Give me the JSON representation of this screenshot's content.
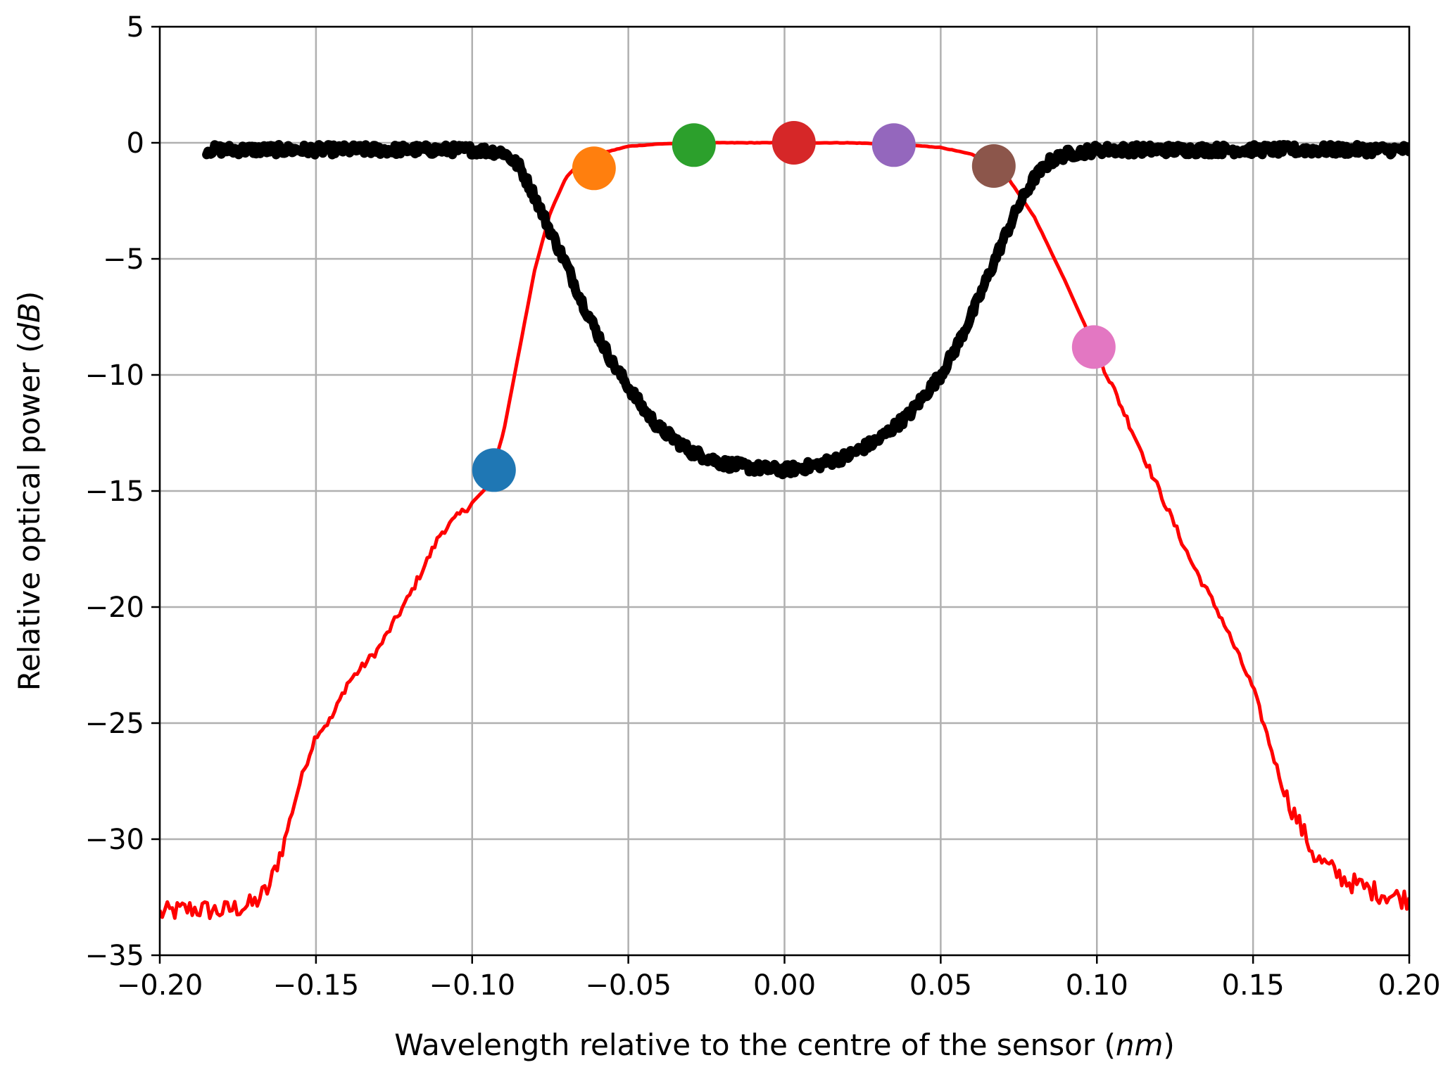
{
  "chart_data": {
    "type": "line",
    "xlabel": "Wavelength relative to the centre of the sensor",
    "xlabel_unit": "nm",
    "ylabel": "Relative optical power",
    "ylabel_unit": "dB",
    "xlim": [
      -0.2,
      0.2
    ],
    "ylim": [
      -35,
      5
    ],
    "grid": true,
    "xticks": [
      -0.2,
      -0.15,
      -0.1,
      -0.05,
      0.0,
      0.05,
      0.1,
      0.15,
      0.2
    ],
    "xtick_labels": [
      "−0.20",
      "−0.15",
      "−0.10",
      "−0.05",
      "0.00",
      "0.05",
      "0.10",
      "0.15",
      "0.20"
    ],
    "yticks": [
      5,
      0,
      -5,
      -10,
      -15,
      -20,
      -25,
      -30,
      -35
    ],
    "ytick_labels": [
      "5",
      "0",
      "−5",
      "−10",
      "−15",
      "−20",
      "−25",
      "−30",
      "−35"
    ],
    "series": [
      {
        "kind": "line",
        "color": "#ff0000",
        "x": [
          -0.2,
          -0.19,
          -0.18,
          -0.17,
          -0.165,
          -0.16,
          -0.155,
          -0.15,
          -0.145,
          -0.14,
          -0.13,
          -0.12,
          -0.11,
          -0.1,
          -0.095,
          -0.09,
          -0.085,
          -0.08,
          -0.075,
          -0.07,
          -0.065,
          -0.06,
          -0.05,
          -0.04,
          -0.03,
          -0.02,
          0.0,
          0.02,
          0.035,
          0.05,
          0.06,
          0.07,
          0.08,
          0.09,
          0.1,
          0.11,
          0.12,
          0.13,
          0.14,
          0.15,
          0.16,
          0.17,
          0.18,
          0.19,
          0.2
        ],
        "y": [
          -33.2,
          -33.0,
          -33.1,
          -32.8,
          -32.1,
          -30.0,
          -27.5,
          -25.5,
          -24.8,
          -23.3,
          -21.8,
          -19.5,
          -16.8,
          -15.5,
          -14.8,
          -12.5,
          -9.0,
          -5.5,
          -3.0,
          -1.5,
          -0.8,
          -0.5,
          -0.15,
          -0.05,
          0.0,
          0.0,
          0.0,
          0.0,
          -0.05,
          -0.2,
          -0.5,
          -1.2,
          -3.2,
          -6.0,
          -9.0,
          -12.0,
          -15.0,
          -18.0,
          -20.5,
          -23.5,
          -28.0,
          -30.8,
          -31.8,
          -32.3,
          -32.6
        ]
      },
      {
        "kind": "noisy-line",
        "color": "#000000",
        "x": [
          -0.185,
          -0.15,
          -0.1,
          -0.09,
          -0.085,
          -0.08,
          -0.075,
          -0.07,
          -0.065,
          -0.06,
          -0.055,
          -0.05,
          -0.045,
          -0.04,
          -0.03,
          -0.02,
          -0.01,
          0.0,
          0.01,
          0.02,
          0.03,
          0.04,
          0.05,
          0.055,
          0.06,
          0.065,
          0.07,
          0.075,
          0.08,
          0.085,
          0.09,
          0.1,
          0.15,
          0.2
        ],
        "y": [
          -0.3,
          -0.3,
          -0.3,
          -0.4,
          -1.0,
          -2.3,
          -3.8,
          -5.2,
          -6.8,
          -8.2,
          -9.5,
          -10.5,
          -11.5,
          -12.3,
          -13.3,
          -13.8,
          -14.0,
          -14.1,
          -13.9,
          -13.5,
          -12.8,
          -11.7,
          -10.0,
          -8.8,
          -7.4,
          -5.8,
          -4.2,
          -2.7,
          -1.5,
          -0.8,
          -0.5,
          -0.3,
          -0.3,
          -0.3
        ]
      }
    ],
    "markers": [
      {
        "x": -0.093,
        "y": -14.1,
        "color": "#1f77b4"
      },
      {
        "x": -0.061,
        "y": -1.1,
        "color": "#ff7f0e"
      },
      {
        "x": -0.029,
        "y": -0.1,
        "color": "#2ca02c"
      },
      {
        "x": 0.003,
        "y": 0.0,
        "color": "#d62728"
      },
      {
        "x": 0.035,
        "y": -0.1,
        "color": "#9467bd"
      },
      {
        "x": 0.067,
        "y": -1.0,
        "color": "#8c564b"
      },
      {
        "x": 0.099,
        "y": -8.8,
        "color": "#e377c2"
      }
    ]
  }
}
